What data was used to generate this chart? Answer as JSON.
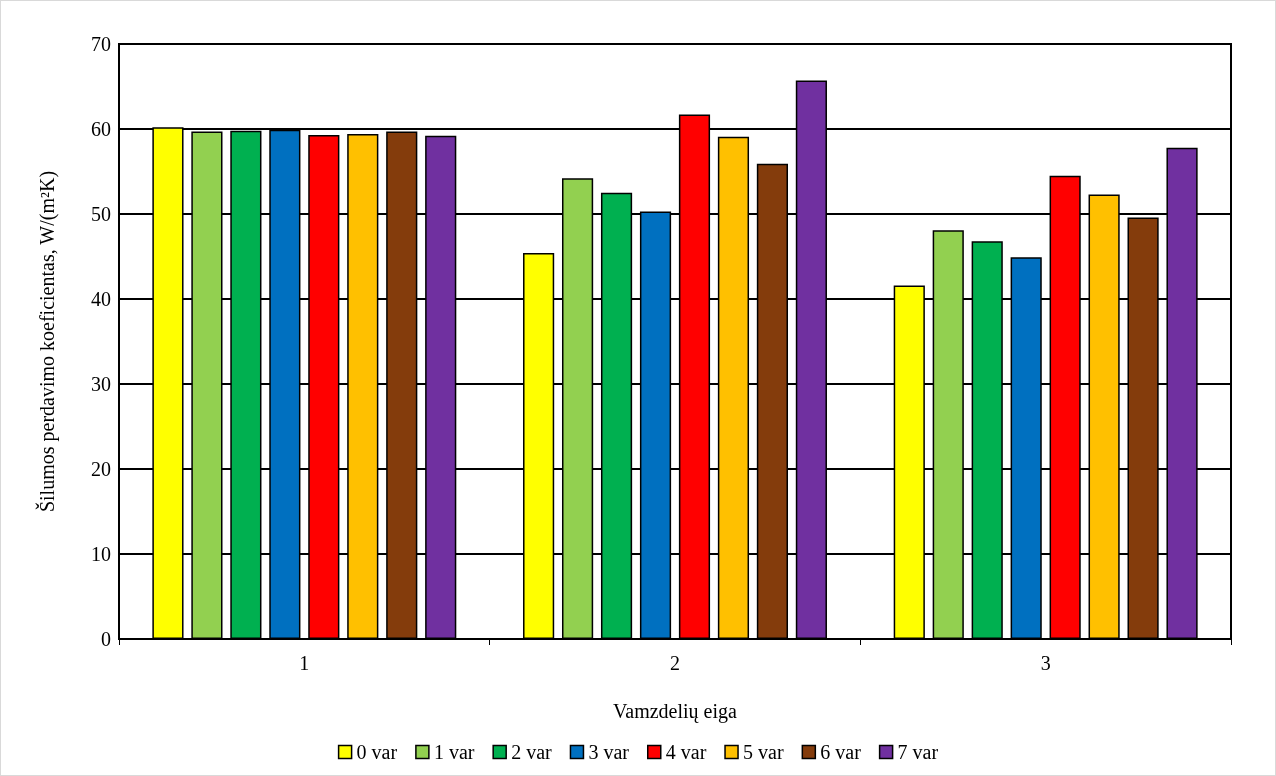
{
  "chart_data": {
    "type": "bar",
    "xlabel": "Vamzdelių eiga",
    "ylabel": "Šilumos perdavimo koeficientas, W/(m²K)",
    "categories": [
      "1",
      "2",
      "3"
    ],
    "ylim": [
      0,
      70
    ],
    "yticks": [
      0,
      10,
      20,
      30,
      40,
      50,
      60,
      70
    ],
    "grid": "y",
    "legend": "bottom",
    "series": [
      {
        "name": "0 var",
        "color": "#ffff00",
        "values": [
          60.2,
          45.4,
          41.6
        ]
      },
      {
        "name": "1 var",
        "color": "#92d050",
        "values": [
          59.7,
          54.2,
          48.1
        ]
      },
      {
        "name": "2 var",
        "color": "#00b050",
        "values": [
          59.8,
          52.5,
          46.8
        ]
      },
      {
        "name": "3 var",
        "color": "#0070c0",
        "values": [
          59.9,
          50.3,
          44.9
        ]
      },
      {
        "name": "4 var",
        "color": "#ff0000",
        "values": [
          59.3,
          61.7,
          54.5
        ]
      },
      {
        "name": "5 var",
        "color": "#ffc000",
        "values": [
          59.4,
          59.1,
          52.3
        ]
      },
      {
        "name": "6 var",
        "color": "#843c0c",
        "values": [
          59.7,
          55.9,
          49.6
        ]
      },
      {
        "name": "7 var",
        "color": "#7030a0",
        "values": [
          59.2,
          65.7,
          57.8
        ]
      }
    ]
  }
}
